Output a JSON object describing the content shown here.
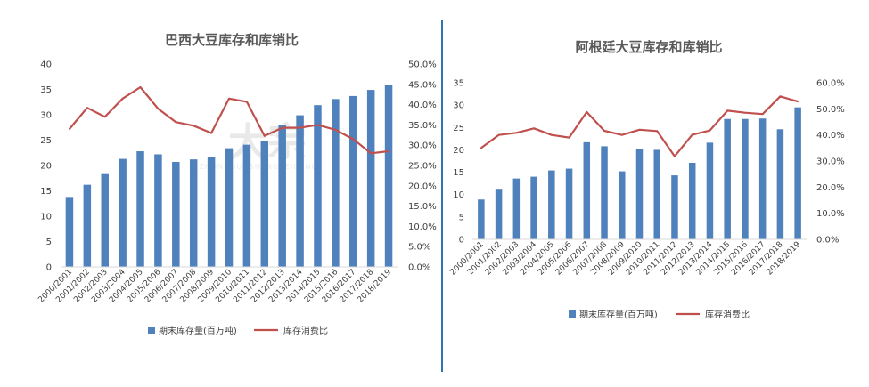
{
  "charts": [
    {
      "title": "巴西大豆库存和库销比",
      "legend": {
        "bar": "期末库存量(百万吨)",
        "line": "库存消费比"
      },
      "colors": {
        "bar": "#4F81BD",
        "line": "#C0504D"
      },
      "watermark": "大宗",
      "watermark_sub": "ZHONGGUOSHENGNEICANG"
    },
    {
      "title": "阿根廷大豆库存和库销比",
      "legend": {
        "bar": "期末库存量(百万吨)",
        "line": "库存消费比"
      },
      "colors": {
        "bar": "#4F81BD",
        "line": "#C0504D"
      }
    }
  ],
  "divider_color": "#2E75B6",
  "chart_data": [
    {
      "type": "bar",
      "title": "巴西大豆库存和库销比",
      "categories": [
        "2000/2001",
        "2001/2002",
        "2002/2003",
        "2003/2004",
        "2004/2005",
        "2005/2006",
        "2006/2007",
        "2007/2008",
        "2008/2009",
        "2009/2010",
        "2010/2011",
        "2011/2012",
        "2012/2013",
        "2013/2014",
        "2014/2015",
        "2015/2016",
        "2016/2017",
        "2017/2018",
        "2018/2019"
      ],
      "series": [
        {
          "name": "期末库存量(百万吨)",
          "type": "bar",
          "axis": "left",
          "values": [
            13.8,
            16.2,
            18.3,
            21.3,
            22.8,
            22.2,
            20.7,
            21.2,
            21.7,
            23.4,
            24.1,
            24.9,
            27.9,
            29.9,
            31.9,
            33.1,
            33.7,
            34.9,
            35.9
          ]
        },
        {
          "name": "库存消费比",
          "type": "line",
          "axis": "right",
          "values": [
            34.0,
            39.2,
            37.0,
            41.5,
            44.3,
            39.0,
            35.7,
            34.8,
            33.0,
            41.5,
            40.7,
            32.3,
            34.3,
            34.3,
            35.0,
            33.8,
            31.5,
            28.0,
            28.5
          ]
        }
      ],
      "yticks": [
        "0",
        "5",
        "10",
        "15",
        "20",
        "25",
        "30",
        "35",
        "40"
      ],
      "y2ticks": [
        "0.0%",
        "5.0%",
        "10.0%",
        "15.0%",
        "20.0%",
        "25.0%",
        "30.0%",
        "35.0%",
        "40.0%",
        "45.0%",
        "50.0%"
      ],
      "ylim": [
        0,
        40
      ],
      "y2lim": [
        0,
        50
      ],
      "grid": false,
      "legend_position": "bottom"
    },
    {
      "type": "bar",
      "title": "阿根廷大豆库存和库销比",
      "categories": [
        "2000/2001",
        "2001/2002",
        "2002/2003",
        "2003/2004",
        "2004/2005",
        "2005/2006",
        "2006/2007",
        "2007/2008",
        "2008/2009",
        "2009/2010",
        "2010/2011",
        "2011/2012",
        "2012/2013",
        "2013/2014",
        "2014/2015",
        "2015/2016",
        "2016/2017",
        "2017/2018",
        "2018/2019"
      ],
      "series": [
        {
          "name": "期末库存量(百万吨)",
          "type": "bar",
          "axis": "left",
          "values": [
            8.9,
            11.1,
            13.6,
            14.0,
            15.4,
            15.8,
            21.7,
            20.8,
            15.2,
            20.2,
            20.0,
            14.3,
            17.1,
            21.6,
            26.9,
            26.9,
            27.0,
            24.6,
            29.5
          ]
        },
        {
          "name": "库存消费比",
          "type": "line",
          "axis": "right",
          "values": [
            35.0,
            40.0,
            40.8,
            42.5,
            40.0,
            39.0,
            48.8,
            41.6,
            40.0,
            42.0,
            41.5,
            31.8,
            40.1,
            41.7,
            49.3,
            48.5,
            48.0,
            54.8,
            52.8
          ]
        }
      ],
      "yticks": [
        "0",
        "5",
        "10",
        "15",
        "20",
        "25",
        "30",
        "35"
      ],
      "y2ticks": [
        "0.0%",
        "10.0%",
        "20.0%",
        "30.0%",
        "40.0%",
        "50.0%",
        "60.0%"
      ],
      "ylim": [
        0,
        35
      ],
      "y2lim": [
        0,
        60
      ],
      "grid": false,
      "legend_position": "bottom"
    }
  ]
}
